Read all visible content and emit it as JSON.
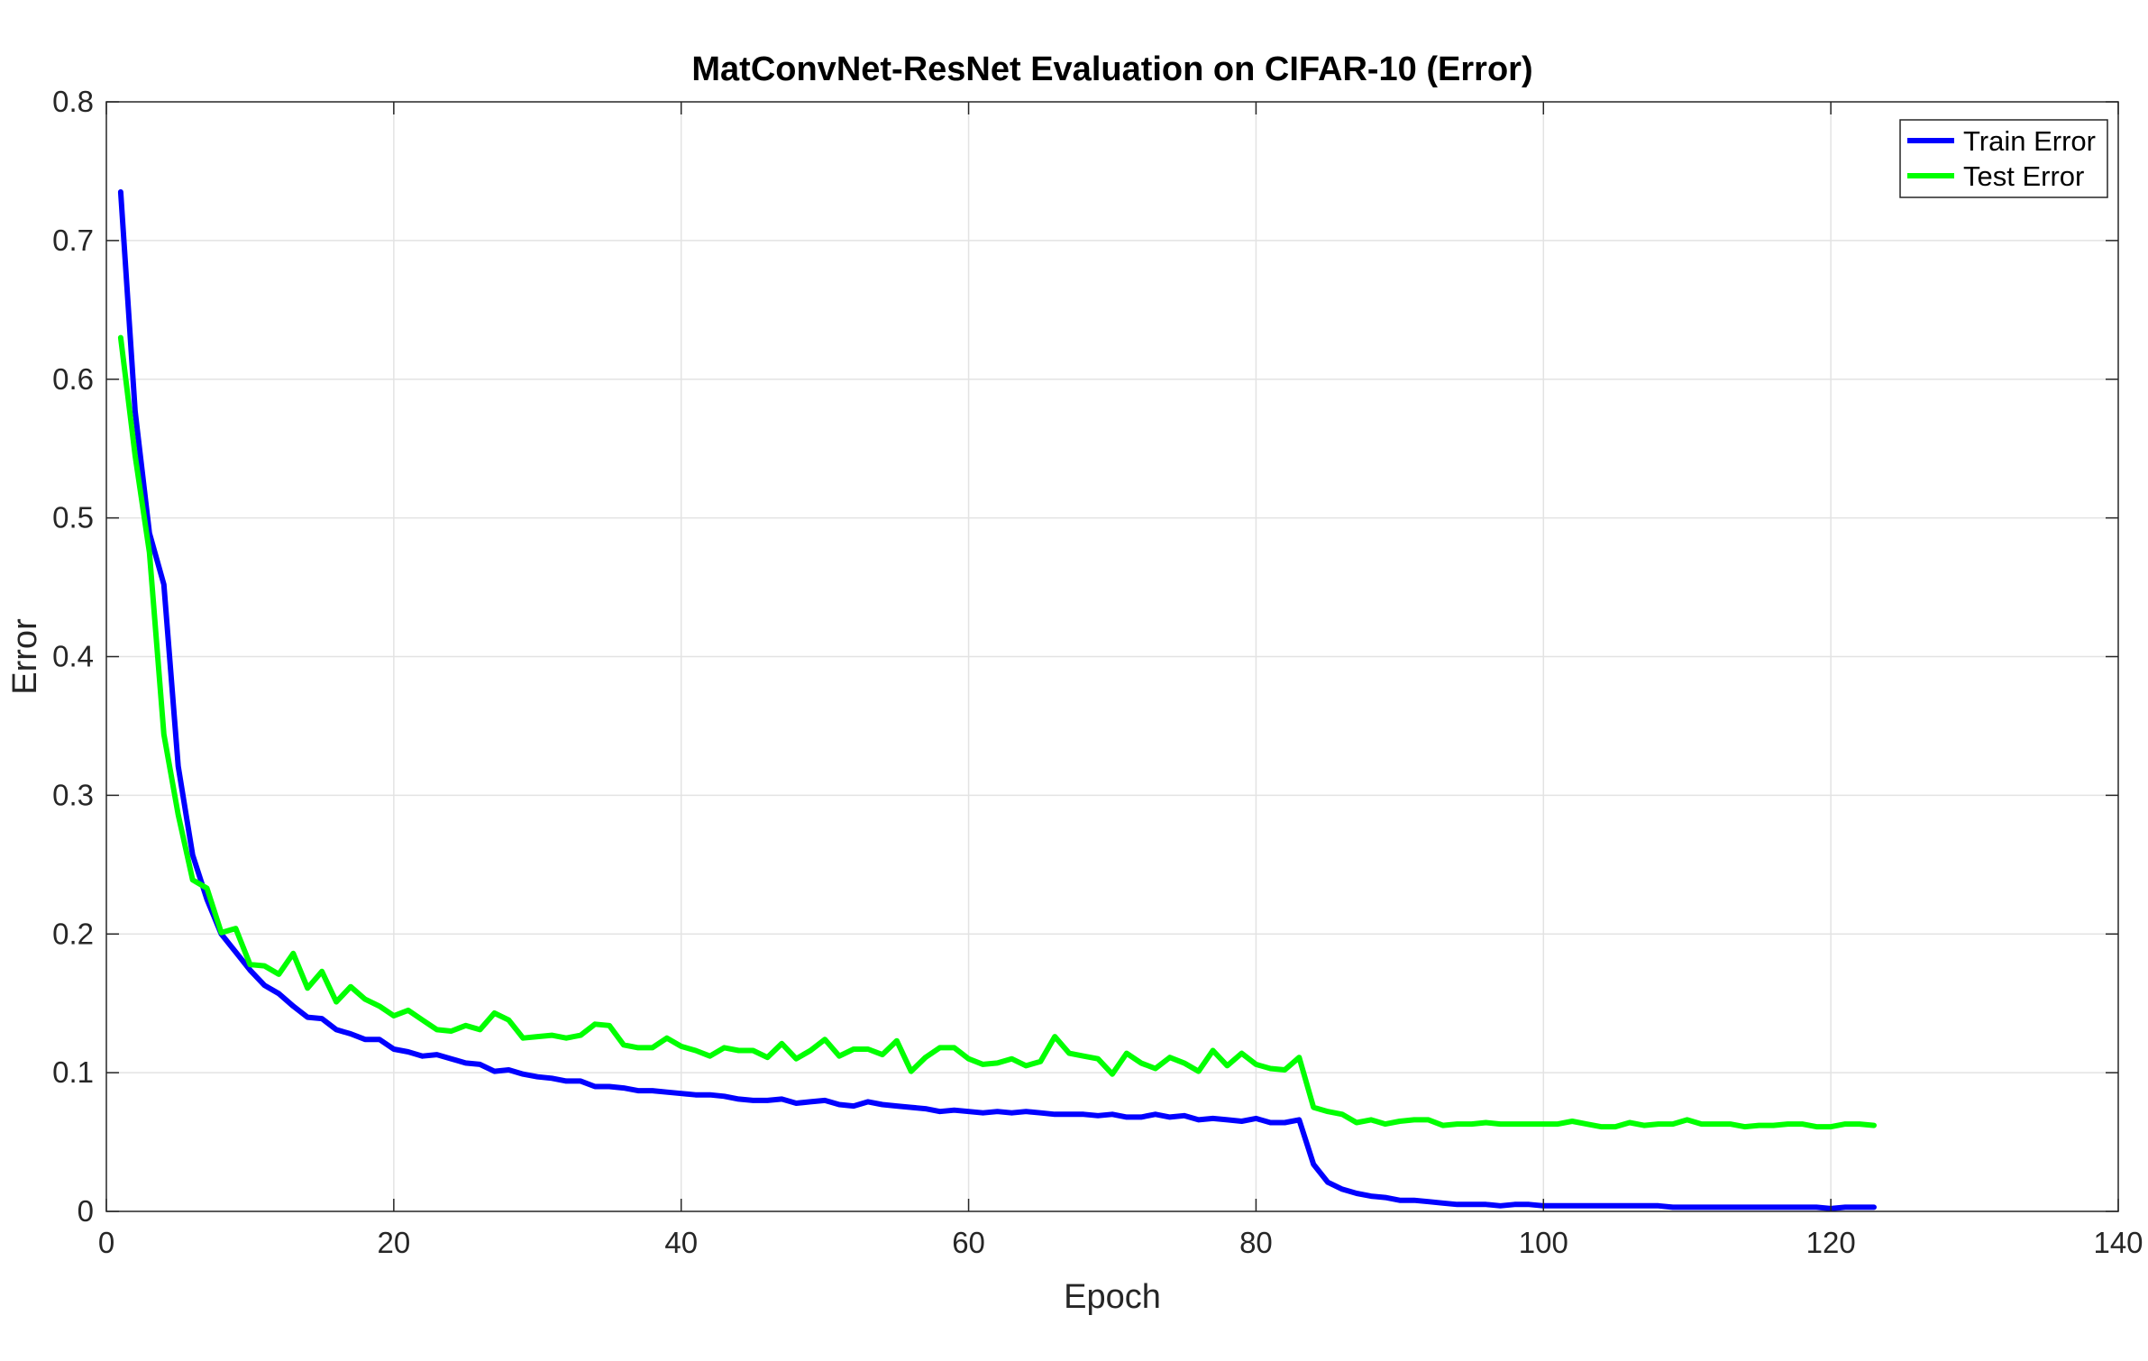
{
  "chart_data": {
    "type": "line",
    "title": "MatConvNet-ResNet Evaluation on CIFAR-10 (Error)",
    "xlabel": "Epoch",
    "ylabel": "Error",
    "xlim": [
      0,
      140
    ],
    "ylim": [
      0,
      0.8
    ],
    "xticks": [
      0,
      20,
      40,
      60,
      80,
      100,
      120,
      140
    ],
    "yticks": [
      0,
      0.1,
      0.2,
      0.3,
      0.4,
      0.5,
      0.6,
      0.7,
      0.8
    ],
    "grid": true,
    "legend_position": "top-right",
    "x": [
      1,
      2,
      3,
      4,
      5,
      6,
      7,
      8,
      9,
      10,
      11,
      12,
      13,
      14,
      15,
      16,
      17,
      18,
      19,
      20,
      21,
      22,
      23,
      24,
      25,
      26,
      27,
      28,
      29,
      30,
      31,
      32,
      33,
      34,
      35,
      36,
      37,
      38,
      39,
      40,
      41,
      42,
      43,
      44,
      45,
      46,
      47,
      48,
      49,
      50,
      51,
      52,
      53,
      54,
      55,
      56,
      57,
      58,
      59,
      60,
      61,
      62,
      63,
      64,
      65,
      66,
      67,
      68,
      69,
      70,
      71,
      72,
      73,
      74,
      75,
      76,
      77,
      78,
      79,
      80,
      81,
      82,
      83,
      84,
      85,
      86,
      87,
      88,
      89,
      90,
      91,
      92,
      93,
      94,
      95,
      96,
      97,
      98,
      99,
      100,
      101,
      102,
      103,
      104,
      105,
      106,
      107,
      108,
      109,
      110,
      111,
      112,
      113,
      114,
      115,
      116,
      117,
      118,
      119,
      120,
      121,
      122,
      123
    ],
    "series": [
      {
        "name": "Train Error",
        "color": "#0000ff",
        "values": [
          0.735,
          0.577,
          0.489,
          0.452,
          0.321,
          0.257,
          0.225,
          0.2,
          0.187,
          0.174,
          0.163,
          0.157,
          0.148,
          0.14,
          0.139,
          0.131,
          0.128,
          0.124,
          0.124,
          0.117,
          0.115,
          0.112,
          0.113,
          0.11,
          0.107,
          0.106,
          0.101,
          0.102,
          0.099,
          0.097,
          0.096,
          0.094,
          0.094,
          0.09,
          0.09,
          0.089,
          0.087,
          0.087,
          0.086,
          0.085,
          0.084,
          0.084,
          0.083,
          0.081,
          0.08,
          0.08,
          0.081,
          0.078,
          0.079,
          0.08,
          0.077,
          0.076,
          0.079,
          0.077,
          0.076,
          0.075,
          0.074,
          0.072,
          0.073,
          0.072,
          0.071,
          0.072,
          0.071,
          0.072,
          0.071,
          0.07,
          0.07,
          0.07,
          0.069,
          0.07,
          0.068,
          0.068,
          0.07,
          0.068,
          0.069,
          0.066,
          0.067,
          0.066,
          0.065,
          0.067,
          0.064,
          0.064,
          0.066,
          0.034,
          0.021,
          0.016,
          0.013,
          0.011,
          0.01,
          0.008,
          0.008,
          0.007,
          0.006,
          0.005,
          0.005,
          0.005,
          0.004,
          0.005,
          0.005,
          0.004,
          0.004,
          0.004,
          0.004,
          0.004,
          0.004,
          0.004,
          0.004,
          0.004,
          0.003,
          0.003,
          0.003,
          0.003,
          0.003,
          0.003,
          0.003,
          0.003,
          0.003,
          0.003,
          0.003,
          0.002,
          0.003,
          0.003,
          0.003
        ]
      },
      {
        "name": "Test Error",
        "color": "#00ff00",
        "values": [
          0.63,
          0.545,
          0.475,
          0.344,
          0.286,
          0.239,
          0.233,
          0.201,
          0.204,
          0.178,
          0.177,
          0.171,
          0.186,
          0.161,
          0.173,
          0.151,
          0.162,
          0.153,
          0.148,
          0.141,
          0.145,
          0.138,
          0.131,
          0.13,
          0.134,
          0.131,
          0.143,
          0.138,
          0.125,
          0.126,
          0.127,
          0.125,
          0.127,
          0.135,
          0.134,
          0.12,
          0.118,
          0.118,
          0.125,
          0.119,
          0.116,
          0.112,
          0.118,
          0.116,
          0.116,
          0.111,
          0.121,
          0.11,
          0.116,
          0.124,
          0.112,
          0.117,
          0.117,
          0.113,
          0.123,
          0.101,
          0.111,
          0.118,
          0.118,
          0.11,
          0.106,
          0.107,
          0.11,
          0.105,
          0.108,
          0.126,
          0.114,
          0.112,
          0.11,
          0.099,
          0.114,
          0.107,
          0.103,
          0.111,
          0.107,
          0.101,
          0.116,
          0.105,
          0.114,
          0.106,
          0.103,
          0.102,
          0.111,
          0.075,
          0.072,
          0.07,
          0.064,
          0.066,
          0.063,
          0.065,
          0.066,
          0.066,
          0.062,
          0.063,
          0.063,
          0.064,
          0.063,
          0.063,
          0.063,
          0.063,
          0.063,
          0.065,
          0.063,
          0.061,
          0.061,
          0.064,
          0.062,
          0.063,
          0.063,
          0.066,
          0.063,
          0.063,
          0.063,
          0.061,
          0.062,
          0.062,
          0.063,
          0.063,
          0.061,
          0.061,
          0.063,
          0.063,
          0.062
        ]
      }
    ]
  }
}
